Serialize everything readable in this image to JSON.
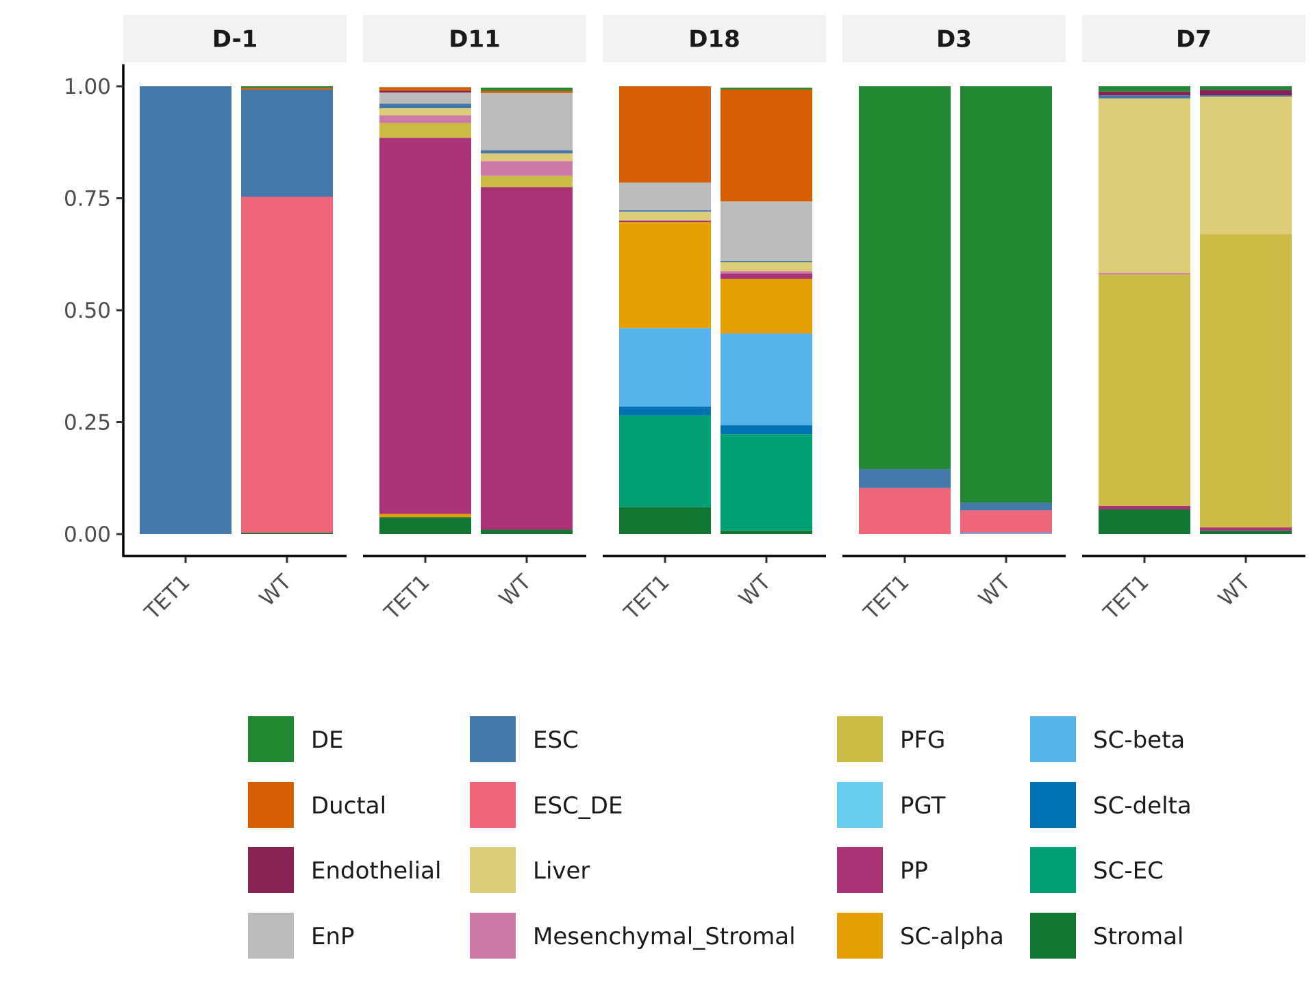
{
  "chart_data": {
    "type": "bar",
    "stacked": true,
    "xlabel": "",
    "ylabel": "",
    "ylim": [
      0,
      1
    ],
    "y_ticks": [
      "0.00",
      "0.25",
      "0.50",
      "0.75",
      "1.00"
    ],
    "y_tick_values": [
      0,
      0.25,
      0.5,
      0.75,
      1
    ],
    "grid": false,
    "legend_position": "bottom",
    "categories": [
      "TET1",
      "WT"
    ],
    "cell_types": [
      {
        "name": "DE",
        "color": "#228833"
      },
      {
        "name": "Ductal",
        "color": "#D55E00"
      },
      {
        "name": "Endothelial",
        "color": "#882255"
      },
      {
        "name": "EnP",
        "color": "#BBBBBB"
      },
      {
        "name": "ESC",
        "color": "#4477AA"
      },
      {
        "name": "ESC_DE",
        "color": "#EE6677"
      },
      {
        "name": "Liver",
        "color": "#DDCC77"
      },
      {
        "name": "Mesenchymal_Stromal",
        "color": "#CC79A7"
      },
      {
        "name": "PFG",
        "color": "#CCBB44"
      },
      {
        "name": "PGT",
        "color": "#66CCEE"
      },
      {
        "name": "PP",
        "color": "#AA3377"
      },
      {
        "name": "SC-alpha",
        "color": "#E69F00"
      },
      {
        "name": "SC-beta",
        "color": "#56B4E9"
      },
      {
        "name": "SC-delta",
        "color": "#0072B2"
      },
      {
        "name": "SC-EC",
        "color": "#009E73"
      },
      {
        "name": "Stromal",
        "color": "#117733"
      }
    ],
    "panels": [
      {
        "label": "D-1",
        "bars": [
          {
            "category": "TET1",
            "values": {
              "ESC": 1.0
            }
          },
          {
            "category": "WT",
            "values": {
              "ESC_DE": 0.75,
              "ESC": 0.24,
              "Ductal": 0.004,
              "Stromal": 0.003,
              "DE": 0.003
            }
          }
        ]
      },
      {
        "label": "D11",
        "bars": [
          {
            "category": "TET1",
            "values": {
              "Stromal": 0.038,
              "SC-alpha": 0.007,
              "PP": 0.84,
              "PFG": 0.033,
              "Mesenchymal_Stromal": 0.017,
              "Liver": 0.016,
              "ESC": 0.01,
              "EnP": 0.025,
              "Endothelial": 0.004,
              "Ductal": 0.008
            }
          },
          {
            "category": "WT",
            "values": {
              "Stromal": 0.01,
              "DE": 0.003,
              "PP": 0.765,
              "PFG": 0.025,
              "Mesenchymal_Stromal": 0.033,
              "Liver": 0.017,
              "ESC": 0.007,
              "EnP": 0.128,
              "Ductal": 0.005,
              "DE_top": 0.004
            }
          }
        ]
      },
      {
        "label": "D18",
        "bars": [
          {
            "category": "TET1",
            "values": {
              "Stromal": 0.06,
              "SC-EC": 0.205,
              "SC-delta": 0.02,
              "SC-beta": 0.175,
              "SC-alpha": 0.237,
              "PP": 0.003,
              "Liver": 0.02,
              "ESC": 0.003,
              "EnP": 0.062,
              "Ductal": 0.215
            }
          },
          {
            "category": "WT",
            "values": {
              "Stromal": 0.008,
              "SC-EC": 0.215,
              "SC-delta": 0.02,
              "SC-beta": 0.205,
              "SC-alpha": 0.122,
              "PP": 0.012,
              "Mesenchymal_Stromal": 0.005,
              "Liver": 0.02,
              "ESC": 0.003,
              "EnP": 0.133,
              "Ductal": 0.25,
              "DE": 0.004
            }
          }
        ]
      },
      {
        "label": "D3",
        "bars": [
          {
            "category": "TET1",
            "values": {
              "ESC_DE": 0.103,
              "ESC": 0.042,
              "DE": 0.855
            }
          },
          {
            "category": "WT",
            "values": {
              "SC-beta": 0.003,
              "ESC_DE": 0.05,
              "ESC": 0.017,
              "DE": 0.93
            }
          }
        ]
      },
      {
        "label": "D7",
        "bars": [
          {
            "category": "TET1",
            "values": {
              "Stromal": 0.055,
              "PP": 0.008,
              "PFG": 0.517,
              "Mesenchymal_Stromal": 0.003,
              "Liver": 0.39,
              "ESC": 0.007,
              "Endothelial": 0.008,
              "DE": 0.012
            }
          },
          {
            "category": "WT",
            "values": {
              "Stromal": 0.008,
              "PP": 0.007,
              "PFG": 0.655,
              "Liver": 0.307,
              "ESC": 0.003,
              "Endothelial": 0.012,
              "DE": 0.008
            }
          }
        ]
      }
    ]
  }
}
